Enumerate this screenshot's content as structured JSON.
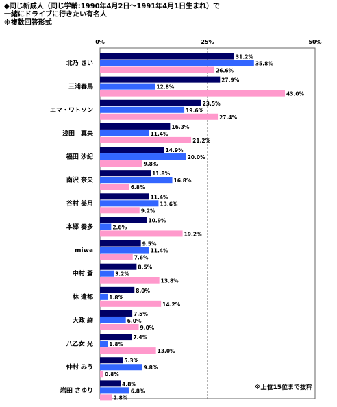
{
  "header": {
    "line1": "◆同じ新成人（同じ学齢:1990年4月2日～1991年4月1日生まれ）で",
    "line2": "一緒にドライブに行きたい有名人",
    "line3": "※複数回答形式"
  },
  "chart_data": {
    "type": "bar",
    "orientation": "horizontal",
    "title": "",
    "xlim": [
      0,
      50
    ],
    "xticks": [
      "0%",
      "25%",
      "50%"
    ],
    "categories": [
      "北乃 きい",
      "三浦春馬",
      "エマ・ワトソン",
      "浅田　真央",
      "福田 沙紀",
      "南沢 奈央",
      "谷村 美月",
      "本郷 奏多",
      "miwa",
      "中村 蒼",
      "林 遣都",
      "大政 絢",
      "八乙女 光",
      "仲村 みう",
      "岩田 さゆり"
    ],
    "series": [
      {
        "name": "",
        "color": "#000066",
        "values": [
          31.2,
          27.9,
          23.5,
          16.3,
          14.9,
          11.8,
          11.4,
          10.9,
          9.5,
          8.5,
          8.0,
          7.5,
          7.4,
          5.3,
          4.8
        ]
      },
      {
        "name": "",
        "color": "#3366ff",
        "values": [
          35.8,
          12.8,
          19.6,
          11.4,
          20.0,
          16.8,
          13.6,
          2.6,
          11.4,
          3.2,
          1.8,
          6.0,
          1.8,
          9.8,
          6.8
        ]
      },
      {
        "name": "",
        "color": "#ff99cc",
        "values": [
          26.6,
          43.0,
          27.4,
          21.2,
          9.8,
          6.8,
          9.2,
          19.2,
          7.6,
          13.8,
          14.2,
          9.0,
          13.0,
          0.8,
          2.8
        ]
      }
    ],
    "value_labels": [
      [
        "31.2%",
        "35.8%",
        "26.6%"
      ],
      [
        "27.9%",
        "12.8%",
        "43.0%"
      ],
      [
        "23.5%",
        "19.6%",
        "27.4%"
      ],
      [
        "16.3%",
        "11.4%",
        "21.2%"
      ],
      [
        "14.9%",
        "20.0%",
        "9.8%"
      ],
      [
        "11.8%",
        "16.8%",
        "6.8%"
      ],
      [
        "11.4%",
        "13.6%",
        "9.2%"
      ],
      [
        "10.9%",
        "2.6%",
        "19.2%"
      ],
      [
        "9.5%",
        "11.4%",
        "7.6%"
      ],
      [
        "8.5%",
        "3.2%",
        "13.8%"
      ],
      [
        "8.0%",
        "1.8%",
        "14.2%"
      ],
      [
        "7.5%",
        "6.0%",
        "9.0%"
      ],
      [
        "7.4%",
        "1.8%",
        "13.0%"
      ],
      [
        "5.3%",
        "9.8%",
        "0.8%"
      ],
      [
        "4.8%",
        "6.8%",
        "2.8%"
      ]
    ],
    "grid": "dashed vertical line at 25%",
    "note": "※上位15位まで抜粋"
  }
}
